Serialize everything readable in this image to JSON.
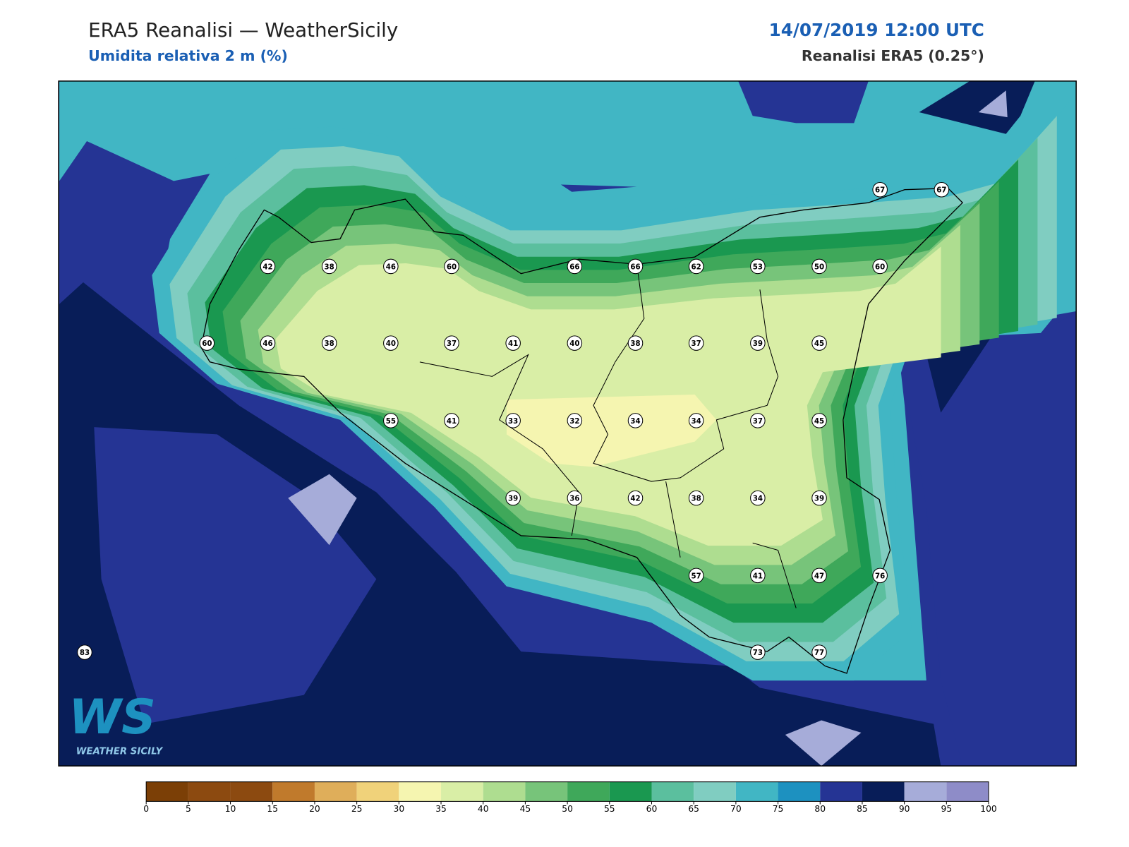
{
  "header": {
    "title": "ERA5 Reanalisi — WeatherSicily",
    "subtitle": "Umidita relativa 2 m (%)",
    "datetime": "14/07/2019 12:00 UTC",
    "source": "Reanalisi ERA5 (0.25°)"
  },
  "stations": [
    42,
    38,
    46,
    60,
    66,
    66,
    62,
    53,
    50,
    60,
    67,
    67,
    60,
    46,
    38,
    40,
    37,
    41,
    40,
    38,
    37,
    39,
    45,
    55,
    41,
    33,
    32,
    34,
    34,
    37,
    45,
    39,
    36,
    42,
    38,
    34,
    39,
    57,
    41,
    47,
    76,
    83,
    73,
    77
  ],
  "colorbar": {
    "ticks": [
      0,
      5,
      10,
      15,
      20,
      25,
      30,
      35,
      40,
      45,
      50,
      55,
      60,
      65,
      70,
      75,
      80,
      85,
      90,
      95,
      100
    ],
    "colors": [
      "#7b3f06",
      "#8c4a10",
      "#8c4a10",
      "#c07a2c",
      "#dfae5a",
      "#f0d27a",
      "#f5f5b0",
      "#d9eea6",
      "#aedd90",
      "#77c47a",
      "#3fa85a",
      "#1a9850",
      "#5bbf9e",
      "#80cdc1",
      "#41b6c4",
      "#1d91c0",
      "#253494",
      "#081d58",
      "#a6acd9",
      "#8e8cc8"
    ]
  },
  "logo": {
    "mark": "WS",
    "name": "WEATHER SICILY"
  }
}
